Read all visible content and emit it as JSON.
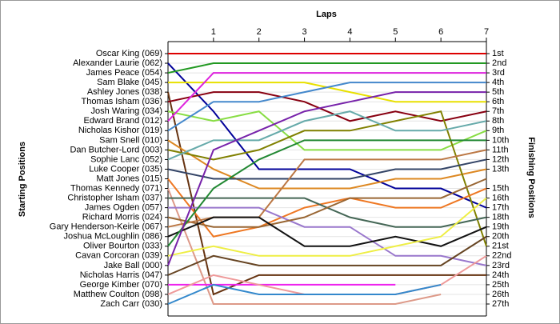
{
  "chart_data": {
    "type": "line",
    "title": "Laps",
    "y_label": "Starting Positions",
    "y2_label": "Finishing Positions",
    "x": [
      0,
      1,
      2,
      3,
      4,
      5,
      6,
      7
    ],
    "xlim": [
      0,
      7
    ],
    "xticks": [
      1,
      2,
      3,
      4,
      5,
      6,
      7
    ],
    "ylim": [
      1,
      27
    ],
    "inverted": true,
    "grid": true,
    "y2ticks": [
      {
        "value": 1,
        "label": "1st"
      },
      {
        "value": 2,
        "label": "2nd"
      },
      {
        "value": 3,
        "label": "3rd"
      },
      {
        "value": 4,
        "label": "4th"
      },
      {
        "value": 5,
        "label": "5th"
      },
      {
        "value": 6,
        "label": "6th"
      },
      {
        "value": 7,
        "label": "7th"
      },
      {
        "value": 8,
        "label": "8th"
      },
      {
        "value": 9,
        "label": "9th"
      },
      {
        "value": 10,
        "label": "10th"
      },
      {
        "value": 11,
        "label": "11th"
      },
      {
        "value": 12,
        "label": "12th"
      },
      {
        "value": 13,
        "label": "13th"
      },
      {
        "value": 15,
        "label": "15th"
      },
      {
        "value": 16,
        "label": "16th"
      },
      {
        "value": 17,
        "label": "17th"
      },
      {
        "value": 18,
        "label": "18th"
      },
      {
        "value": 19,
        "label": "19th"
      },
      {
        "value": 20,
        "label": "20th"
      },
      {
        "value": 21,
        "label": "21st"
      },
      {
        "value": 22,
        "label": "22nd"
      },
      {
        "value": 23,
        "label": "23rd"
      },
      {
        "value": 24,
        "label": "24th"
      },
      {
        "value": 25,
        "label": "25th"
      },
      {
        "value": 26,
        "label": "26th"
      },
      {
        "value": 27,
        "label": "27th"
      }
    ],
    "series": [
      {
        "name": "Oscar King (069)",
        "color": "#dd0000",
        "values": [
          1,
          1,
          1,
          1,
          1,
          1,
          1,
          1
        ]
      },
      {
        "name": "Alexander Laurie (062)",
        "color": "#000099",
        "values": [
          2,
          7,
          13,
          13,
          13,
          15,
          15,
          17
        ]
      },
      {
        "name": "James Peace (054)",
        "color": "#229922",
        "values": [
          3,
          2,
          2,
          2,
          2,
          2,
          2,
          2
        ]
      },
      {
        "name": "Sam Blake (045)",
        "color": "#e8e000",
        "values": [
          4,
          4,
          4,
          4,
          5,
          6,
          6,
          6
        ]
      },
      {
        "name": "Ashley Jones (038)",
        "color": "#663311",
        "values": [
          5,
          26,
          24,
          24,
          24,
          24,
          24,
          24
        ]
      },
      {
        "name": "Thomas Isham (036)",
        "color": "#880011",
        "values": [
          6,
          5,
          5,
          6,
          8,
          7,
          8,
          7
        ]
      },
      {
        "name": "Josh Waring (034)",
        "color": "#88dd44",
        "values": [
          7,
          8,
          7,
          11,
          11,
          11,
          11,
          9
        ]
      },
      {
        "name": "Edward Brand (012)",
        "color": "#dd22dd",
        "values": [
          8,
          3,
          3,
          3,
          3,
          3,
          3,
          3
        ]
      },
      {
        "name": "Nicholas Kishor (019)",
        "color": "#4488cc",
        "values": [
          9,
          6,
          6,
          5,
          4,
          4,
          4,
          4
        ]
      },
      {
        "name": "Sam Snell (010)",
        "color": "#dd8822",
        "values": [
          10,
          13,
          15,
          15,
          15,
          14,
          14,
          13
        ]
      },
      {
        "name": "Dan Butcher-Lord (003)",
        "color": "#808000",
        "values": [
          11,
          12,
          11,
          9,
          9,
          8,
          7,
          21
        ]
      },
      {
        "name": "Sophie Lanc (052)",
        "color": "#66aaaa",
        "values": [
          12,
          10,
          10,
          8,
          7,
          9,
          9,
          8
        ]
      },
      {
        "name": "Luke Cooper (035)",
        "color": "#334466",
        "values": [
          13,
          14,
          14,
          14,
          14,
          13,
          13,
          12
        ]
      },
      {
        "name": "Matt Jones (015)",
        "color": "#ee7722",
        "values": [
          14,
          20,
          19,
          17,
          16,
          17,
          17,
          15
        ]
      },
      {
        "name": "Thomas Kennedy (071)",
        "color": "#dd9988",
        "values": [
          15,
          27,
          27,
          27,
          27,
          27,
          26,
          null
        ]
      },
      {
        "name": "Christopher Isham (037)",
        "color": "#446655",
        "values": [
          16,
          16,
          16,
          16,
          18,
          19,
          19,
          18
        ]
      },
      {
        "name": "James Ogden (057)",
        "color": "#9977cc",
        "values": [
          17,
          17,
          17,
          19,
          19,
          22,
          22,
          23
        ]
      },
      {
        "name": "Richard Morris (024)",
        "color": "#996633",
        "values": [
          18,
          19,
          19,
          18,
          16,
          16,
          16,
          14
        ]
      },
      {
        "name": "Gary Henderson-Keirle (067)",
        "color": "#bb7744",
        "values": [
          19,
          18,
          18,
          12,
          12,
          12,
          12,
          11
        ]
      },
      {
        "name": "Joshua McLoughlin (086)",
        "color": "#111111",
        "values": [
          20,
          18,
          18,
          21,
          21,
          20,
          21,
          19
        ]
      },
      {
        "name": "Oliver Bourton (033)",
        "color": "#228833",
        "values": [
          21,
          15,
          12,
          10,
          10,
          10,
          10,
          10
        ]
      },
      {
        "name": "Cavan Corcoran (039)",
        "color": "#eeee44",
        "values": [
          22,
          21,
          22,
          22,
          22,
          21,
          20,
          16
        ]
      },
      {
        "name": "Jake Ball (000)",
        "color": "#7722aa",
        "values": [
          23,
          11,
          9,
          7,
          6,
          5,
          5,
          5
        ]
      },
      {
        "name": "Nicholas Harris (047)",
        "color": "#664422",
        "values": [
          24,
          22,
          23,
          23,
          23,
          23,
          23,
          20
        ]
      },
      {
        "name": "George Kimber (070)",
        "color": "#ee22ee",
        "values": [
          25,
          25,
          25,
          25,
          25,
          25,
          null,
          null
        ]
      },
      {
        "name": "Matthew Coulton (098)",
        "color": "#ee9999",
        "values": [
          26,
          24,
          25,
          26,
          26,
          26,
          25,
          22
        ]
      },
      {
        "name": "Zach Carr (030)",
        "color": "#3388cc",
        "values": [
          27,
          25,
          26,
          26,
          26,
          26,
          25,
          null
        ]
      }
    ]
  }
}
